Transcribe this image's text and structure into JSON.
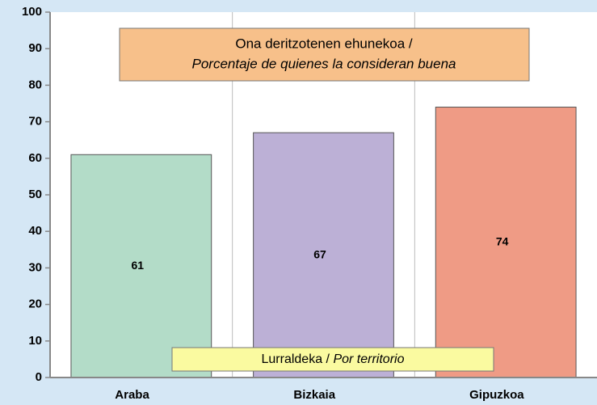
{
  "chart_data": {
    "type": "bar",
    "title": [
      "Ona deritzotenen ehunekoa /",
      "Porcentaje de quienes la consideran buena"
    ],
    "xlabel": [
      "Lurraldeka /",
      "Por territorio"
    ],
    "categories": [
      "Araba",
      "Bizkaia",
      "Gipuzkoa"
    ],
    "values": [
      61,
      67,
      74
    ],
    "colors": [
      "#b3dcc8",
      "#bcb0d6",
      "#ef9b85"
    ],
    "ylim": [
      0,
      100
    ],
    "yticks": [
      0,
      10,
      20,
      30,
      40,
      50,
      60,
      70,
      80,
      90,
      100
    ]
  }
}
